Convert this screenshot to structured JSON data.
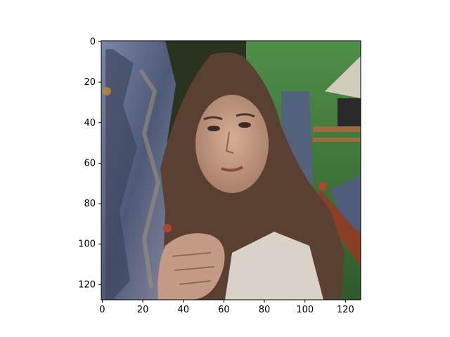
{
  "figure": {
    "image_description_icon": "photo-collage",
    "subject": "woman-with-long-brown-hair-hands-clasped",
    "background": "rocky-cliff-and-forest-with-thatched-hut"
  },
  "axes": {
    "x_ticks": [
      "0",
      "20",
      "40",
      "60",
      "80",
      "100",
      "120"
    ],
    "y_ticks": [
      "0",
      "20",
      "40",
      "60",
      "80",
      "100",
      "120"
    ],
    "xlim": [
      -0.5,
      127.5
    ],
    "ylim": [
      127.5,
      -0.5
    ]
  },
  "colors": {
    "rock": "#5a6a8a",
    "foliage": "#3d7a3a",
    "hair": "#5a4030",
    "skin": "#c89f86",
    "shirt": "#d8d2c8",
    "hut_roof": "#cfc8b8",
    "wood": "#a05a30"
  }
}
